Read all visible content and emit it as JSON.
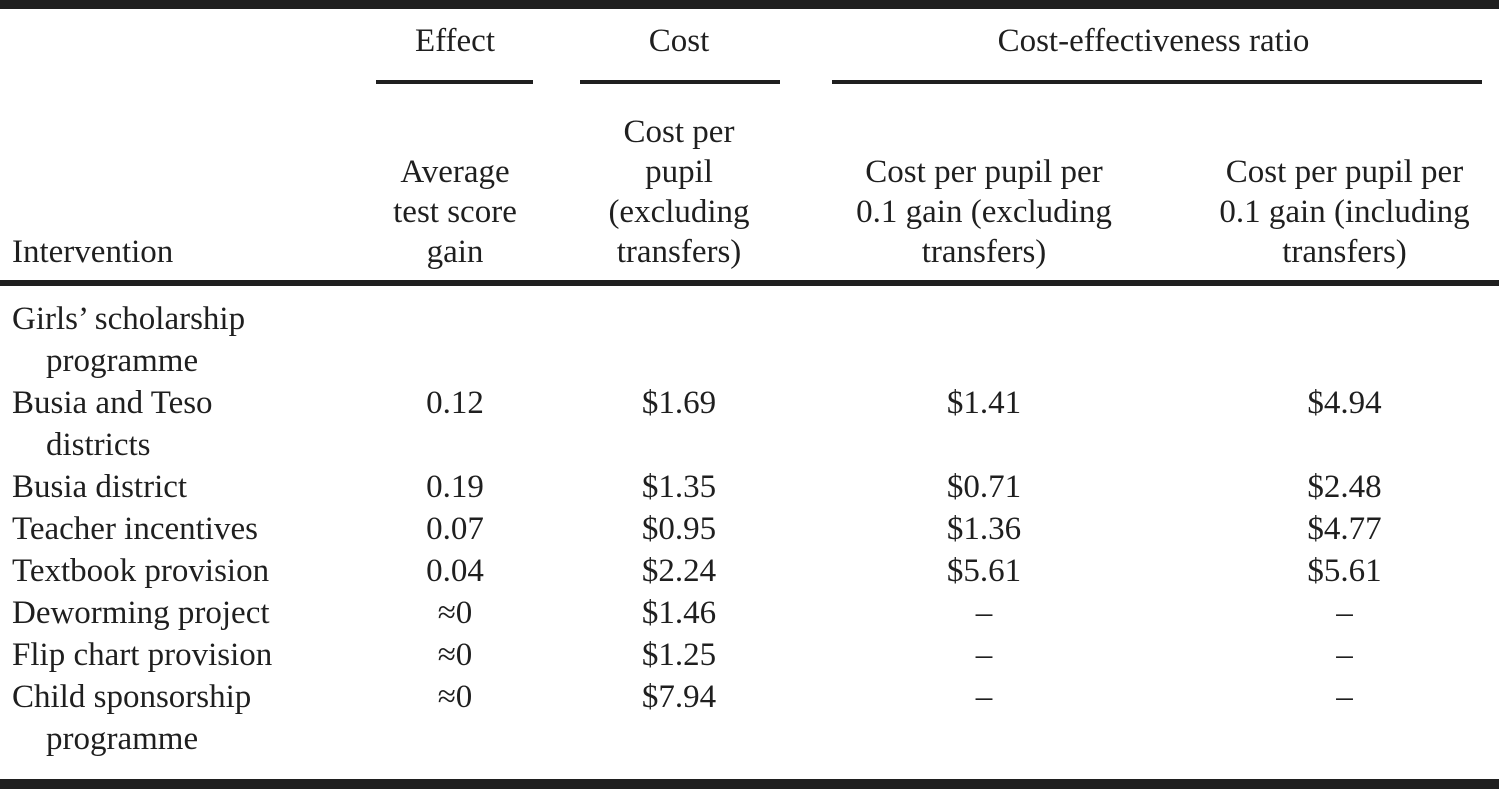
{
  "colors": {
    "ink": "#1f1f1f",
    "background": "#ffffff"
  },
  "table": {
    "groups": {
      "effect": "Effect",
      "cost": "Cost",
      "cer": "Cost-effectiveness ratio"
    },
    "columns": {
      "intervention": "Intervention",
      "effect": "Average\ntest score\ngain",
      "cost": "Cost per\npupil\n(excluding\ntransfers)",
      "cer_excl": "Cost per pupil per\n0.1 gain (excluding\ntransfers)",
      "cer_incl": "Cost per pupil per\n0.1 gain (including\ntransfers)"
    },
    "rows": [
      {
        "intervention": "Girls’ scholarship\nprogramme",
        "effect": "",
        "cost": "",
        "cer_excl": "",
        "cer_incl": ""
      },
      {
        "intervention": "Busia and Teso\ndistricts",
        "effect": "0.12",
        "cost": "$1.69",
        "cer_excl": "$1.41",
        "cer_incl": "$4.94"
      },
      {
        "intervention": "Busia district",
        "effect": "0.19",
        "cost": "$1.35",
        "cer_excl": "$0.71",
        "cer_incl": "$2.48"
      },
      {
        "intervention": "Teacher incentives",
        "effect": "0.07",
        "cost": "$0.95",
        "cer_excl": "$1.36",
        "cer_incl": "$4.77"
      },
      {
        "intervention": "Textbook provision",
        "effect": "0.04",
        "cost": "$2.24",
        "cer_excl": "$5.61",
        "cer_incl": "$5.61"
      },
      {
        "intervention": "Deworming project",
        "effect": "≈0",
        "cost": "$1.46",
        "cer_excl": "–",
        "cer_incl": "–"
      },
      {
        "intervention": "Flip chart provision",
        "effect": "≈0",
        "cost": "$1.25",
        "cer_excl": "–",
        "cer_incl": "–"
      },
      {
        "intervention": "Child sponsorship\nprogramme",
        "effect": "≈0",
        "cost": "$7.94",
        "cer_excl": "–",
        "cer_incl": "–"
      }
    ]
  }
}
